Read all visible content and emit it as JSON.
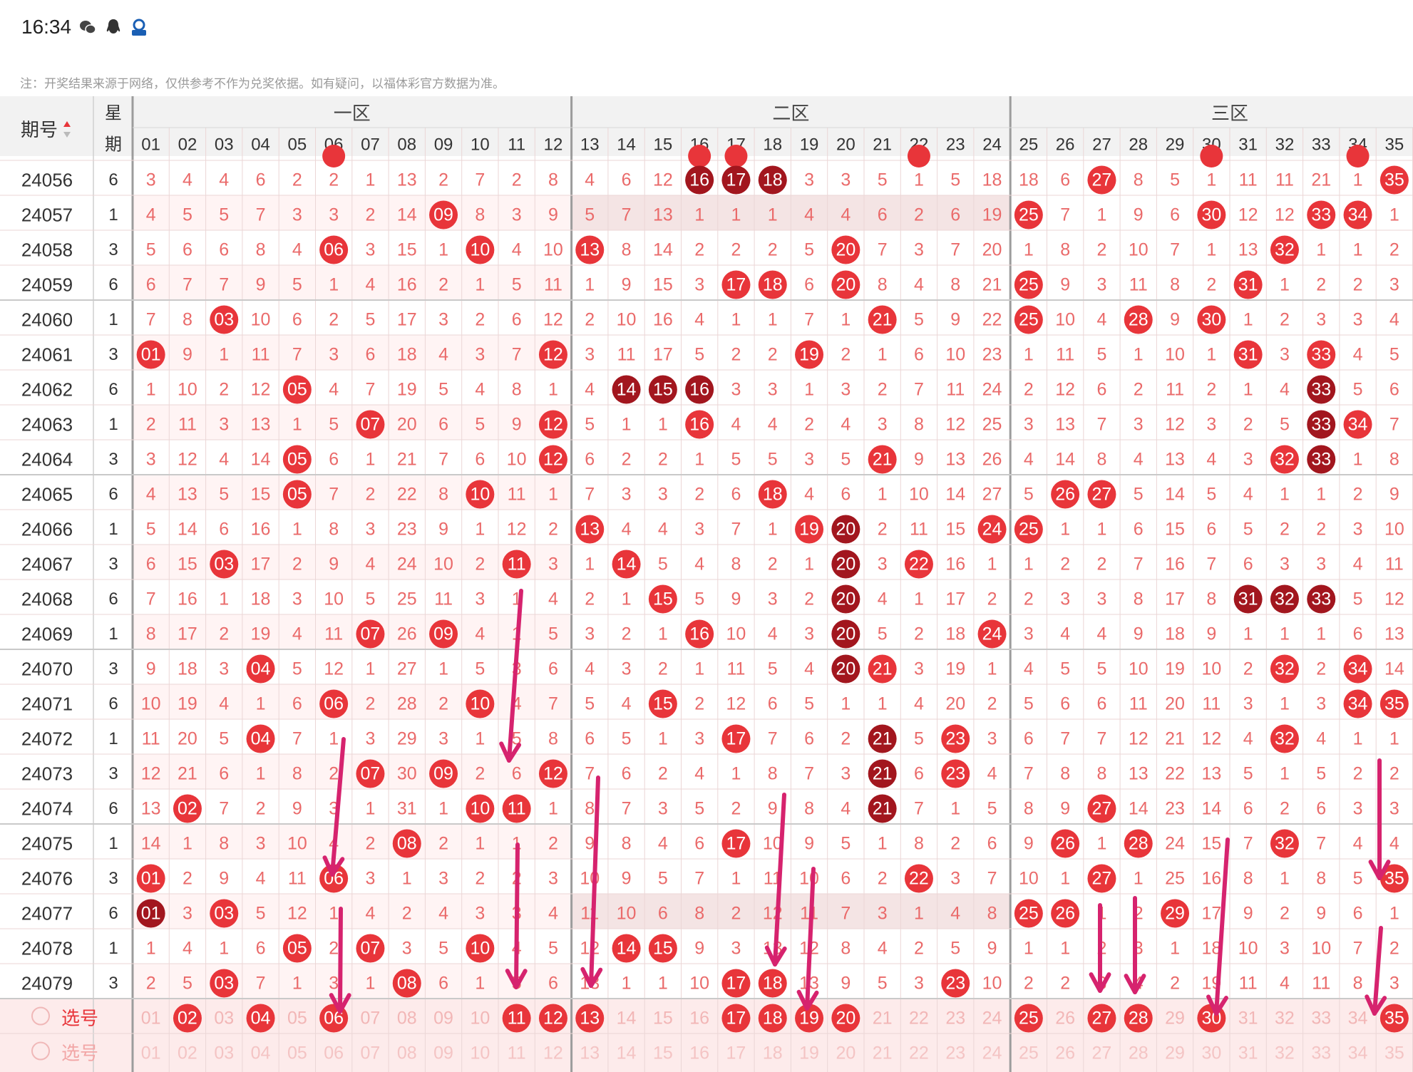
{
  "status_bar": {
    "time": "16:34",
    "icons": [
      "wechat-icon",
      "qq-icon",
      "app-badge-icon"
    ]
  },
  "note": "注：开奖结果来源于网络，仅供参考不作为兑奖依据。如有疑问，以福体彩官方数据为准。",
  "header": {
    "period_label": "期号",
    "weekday_label_top": "星",
    "weekday_label_bottom": "期",
    "zones": [
      "一区",
      "二区",
      "三区"
    ],
    "numbers": [
      "01",
      "02",
      "03",
      "04",
      "05",
      "06",
      "07",
      "08",
      "09",
      "10",
      "11",
      "12",
      "13",
      "14",
      "15",
      "16",
      "17",
      "18",
      "19",
      "20",
      "21",
      "22",
      "23",
      "24",
      "25",
      "26",
      "27",
      "28",
      "29",
      "30",
      "31",
      "32",
      "33",
      "34",
      "35"
    ]
  },
  "rows": [
    {
      "period": "24056",
      "week": "6",
      "cells": [
        "3",
        "4",
        "4",
        "6",
        "2",
        "2",
        "1",
        "13",
        "2",
        "7",
        "2",
        "8",
        "4",
        "6",
        "12",
        "16",
        "17",
        "18",
        "3",
        "3",
        "5",
        "1",
        "5",
        "18",
        "18",
        "6",
        "27",
        "8",
        "5",
        "1",
        "11",
        "11",
        "21",
        "1",
        "35"
      ],
      "hits": [
        16,
        17,
        18,
        27,
        35
      ],
      "repeat": [
        16,
        17,
        18
      ]
    },
    {
      "period": "24057",
      "week": "1",
      "cells": [
        "4",
        "5",
        "5",
        "7",
        "3",
        "3",
        "2",
        "14",
        "09",
        "8",
        "3",
        "9",
        "5",
        "7",
        "13",
        "1",
        "1",
        "1",
        "4",
        "4",
        "6",
        "2",
        "6",
        "19",
        "25",
        "7",
        "1",
        "9",
        "6",
        "30",
        "12",
        "12",
        "33",
        "34",
        "1"
      ],
      "hits": [
        9,
        25,
        30,
        33,
        34
      ],
      "repeat": []
    },
    {
      "period": "24058",
      "week": "3",
      "cells": [
        "5",
        "6",
        "6",
        "8",
        "4",
        "06",
        "3",
        "15",
        "1",
        "10",
        "4",
        "10",
        "13",
        "8",
        "14",
        "2",
        "2",
        "2",
        "5",
        "20",
        "7",
        "3",
        "7",
        "20",
        "1",
        "8",
        "2",
        "10",
        "7",
        "1",
        "13",
        "32",
        "1",
        "1",
        "2"
      ],
      "hits": [
        6,
        10,
        13,
        20,
        32
      ],
      "repeat": []
    },
    {
      "period": "24059",
      "week": "6",
      "cells": [
        "6",
        "7",
        "7",
        "9",
        "5",
        "1",
        "4",
        "16",
        "2",
        "1",
        "5",
        "11",
        "1",
        "9",
        "15",
        "3",
        "17",
        "18",
        "6",
        "20",
        "8",
        "4",
        "8",
        "21",
        "25",
        "9",
        "3",
        "11",
        "8",
        "2",
        "31",
        "1",
        "2",
        "2",
        "3"
      ],
      "hits": [
        17,
        18,
        20,
        25,
        31
      ],
      "repeat": []
    },
    {
      "period": "24060",
      "week": "1",
      "cells": [
        "7",
        "8",
        "03",
        "10",
        "6",
        "2",
        "5",
        "17",
        "3",
        "2",
        "6",
        "12",
        "2",
        "10",
        "16",
        "4",
        "1",
        "1",
        "7",
        "1",
        "21",
        "5",
        "9",
        "22",
        "25",
        "10",
        "4",
        "28",
        "9",
        "30",
        "1",
        "2",
        "3",
        "3",
        "4"
      ],
      "hits": [
        3,
        21,
        25,
        28,
        30
      ],
      "repeat": []
    },
    {
      "period": "24061",
      "week": "3",
      "cells": [
        "01",
        "9",
        "1",
        "11",
        "7",
        "3",
        "6",
        "18",
        "4",
        "3",
        "7",
        "12",
        "3",
        "11",
        "17",
        "5",
        "2",
        "2",
        "19",
        "2",
        "1",
        "6",
        "10",
        "23",
        "1",
        "11",
        "5",
        "1",
        "10",
        "1",
        "31",
        "3",
        "33",
        "4",
        "5"
      ],
      "hits": [
        1,
        12,
        19,
        31,
        33
      ],
      "repeat": []
    },
    {
      "period": "24062",
      "week": "6",
      "cells": [
        "1",
        "10",
        "2",
        "12",
        "05",
        "4",
        "7",
        "19",
        "5",
        "4",
        "8",
        "1",
        "4",
        "14",
        "15",
        "16",
        "3",
        "3",
        "1",
        "3",
        "2",
        "7",
        "11",
        "24",
        "2",
        "12",
        "6",
        "2",
        "11",
        "2",
        "1",
        "4",
        "33",
        "5",
        "6"
      ],
      "hits": [
        5,
        14,
        15,
        16,
        33
      ],
      "repeat": [
        14,
        15,
        16,
        33
      ]
    },
    {
      "period": "24063",
      "week": "1",
      "cells": [
        "2",
        "11",
        "3",
        "13",
        "1",
        "5",
        "07",
        "20",
        "6",
        "5",
        "9",
        "12",
        "5",
        "1",
        "1",
        "16",
        "4",
        "4",
        "2",
        "4",
        "3",
        "8",
        "12",
        "25",
        "3",
        "13",
        "7",
        "3",
        "12",
        "3",
        "2",
        "5",
        "33",
        "34",
        "7"
      ],
      "hits": [
        7,
        12,
        16,
        33,
        34
      ],
      "repeat": [
        33
      ]
    },
    {
      "period": "24064",
      "week": "3",
      "cells": [
        "3",
        "12",
        "4",
        "14",
        "05",
        "6",
        "1",
        "21",
        "7",
        "6",
        "10",
        "12",
        "6",
        "2",
        "2",
        "1",
        "5",
        "5",
        "3",
        "5",
        "21",
        "9",
        "13",
        "26",
        "4",
        "14",
        "8",
        "4",
        "13",
        "4",
        "3",
        "32",
        "33",
        "1",
        "8"
      ],
      "hits": [
        5,
        12,
        21,
        32,
        33
      ],
      "repeat": [
        33
      ]
    },
    {
      "period": "24065",
      "week": "6",
      "cells": [
        "4",
        "13",
        "5",
        "15",
        "05",
        "7",
        "2",
        "22",
        "8",
        "10",
        "11",
        "1",
        "7",
        "3",
        "3",
        "2",
        "6",
        "18",
        "4",
        "6",
        "1",
        "10",
        "14",
        "27",
        "5",
        "26",
        "27",
        "5",
        "14",
        "5",
        "4",
        "1",
        "1",
        "2",
        "9"
      ],
      "hits": [
        5,
        10,
        18,
        26,
        27
      ],
      "repeat": []
    },
    {
      "period": "24066",
      "week": "1",
      "cells": [
        "5",
        "14",
        "6",
        "16",
        "1",
        "8",
        "3",
        "23",
        "9",
        "1",
        "12",
        "2",
        "13",
        "4",
        "4",
        "3",
        "7",
        "1",
        "19",
        "20",
        "2",
        "11",
        "15",
        "24",
        "25",
        "1",
        "1",
        "6",
        "15",
        "6",
        "5",
        "2",
        "2",
        "3",
        "10"
      ],
      "hits": [
        13,
        19,
        20,
        24,
        25
      ],
      "repeat": [
        20
      ]
    },
    {
      "period": "24067",
      "week": "3",
      "cells": [
        "6",
        "15",
        "03",
        "17",
        "2",
        "9",
        "4",
        "24",
        "10",
        "2",
        "11",
        "3",
        "1",
        "14",
        "5",
        "4",
        "8",
        "2",
        "1",
        "20",
        "3",
        "22",
        "16",
        "1",
        "1",
        "2",
        "2",
        "7",
        "16",
        "7",
        "6",
        "3",
        "3",
        "4",
        "11"
      ],
      "hits": [
        3,
        11,
        14,
        20,
        22
      ],
      "repeat": [
        20
      ]
    },
    {
      "period": "24068",
      "week": "6",
      "cells": [
        "7",
        "16",
        "1",
        "18",
        "3",
        "10",
        "5",
        "25",
        "11",
        "3",
        "1",
        "4",
        "2",
        "1",
        "15",
        "5",
        "9",
        "3",
        "2",
        "20",
        "4",
        "1",
        "17",
        "2",
        "2",
        "3",
        "3",
        "8",
        "17",
        "8",
        "31",
        "32",
        "33",
        "5",
        "12"
      ],
      "hits": [
        15,
        20,
        31,
        32,
        33
      ],
      "repeat": [
        20,
        31,
        32,
        33
      ]
    },
    {
      "period": "24069",
      "week": "1",
      "cells": [
        "8",
        "17",
        "2",
        "19",
        "4",
        "11",
        "07",
        "26",
        "09",
        "4",
        "1",
        "5",
        "3",
        "2",
        "1",
        "16",
        "10",
        "4",
        "3",
        "20",
        "5",
        "2",
        "18",
        "24",
        "3",
        "4",
        "4",
        "9",
        "18",
        "9",
        "1",
        "1",
        "1",
        "6",
        "13"
      ],
      "hits": [
        7,
        9,
        16,
        20,
        24
      ],
      "repeat": [
        20
      ]
    },
    {
      "period": "24070",
      "week": "3",
      "cells": [
        "9",
        "18",
        "3",
        "04",
        "5",
        "12",
        "1",
        "27",
        "1",
        "5",
        "3",
        "6",
        "4",
        "3",
        "2",
        "1",
        "11",
        "5",
        "4",
        "20",
        "21",
        "3",
        "19",
        "1",
        "4",
        "5",
        "5",
        "10",
        "19",
        "10",
        "2",
        "32",
        "2",
        "34",
        "14"
      ],
      "hits": [
        4,
        20,
        21,
        32,
        34
      ],
      "repeat": [
        20
      ]
    },
    {
      "period": "24071",
      "week": "6",
      "cells": [
        "10",
        "19",
        "4",
        "1",
        "6",
        "06",
        "2",
        "28",
        "2",
        "10",
        "4",
        "7",
        "5",
        "4",
        "15",
        "2",
        "12",
        "6",
        "5",
        "1",
        "1",
        "4",
        "20",
        "2",
        "5",
        "6",
        "6",
        "11",
        "20",
        "11",
        "3",
        "1",
        "3",
        "34",
        "35"
      ],
      "hits": [
        6,
        10,
        15,
        34,
        35
      ],
      "repeat": []
    },
    {
      "period": "24072",
      "week": "1",
      "cells": [
        "11",
        "20",
        "5",
        "04",
        "7",
        "1",
        "3",
        "29",
        "3",
        "1",
        "5",
        "8",
        "6",
        "5",
        "1",
        "3",
        "17",
        "7",
        "6",
        "2",
        "21",
        "5",
        "23",
        "3",
        "6",
        "7",
        "7",
        "12",
        "21",
        "12",
        "4",
        "32",
        "4",
        "1",
        "1"
      ],
      "hits": [
        4,
        17,
        21,
        23,
        32
      ],
      "repeat": [
        21
      ]
    },
    {
      "period": "24073",
      "week": "3",
      "cells": [
        "12",
        "21",
        "6",
        "1",
        "8",
        "2",
        "07",
        "30",
        "09",
        "2",
        "6",
        "12",
        "7",
        "6",
        "2",
        "4",
        "1",
        "8",
        "7",
        "3",
        "21",
        "6",
        "23",
        "4",
        "7",
        "8",
        "8",
        "13",
        "22",
        "13",
        "5",
        "1",
        "5",
        "2",
        "2"
      ],
      "hits": [
        7,
        9,
        12,
        21,
        23
      ],
      "repeat": [
        21
      ]
    },
    {
      "period": "24074",
      "week": "6",
      "cells": [
        "13",
        "02",
        "7",
        "2",
        "9",
        "3",
        "1",
        "31",
        "1",
        "10",
        "11",
        "1",
        "8",
        "7",
        "3",
        "5",
        "2",
        "9",
        "8",
        "4",
        "21",
        "7",
        "1",
        "5",
        "8",
        "9",
        "27",
        "14",
        "23",
        "14",
        "6",
        "2",
        "6",
        "3",
        "3"
      ],
      "hits": [
        2,
        10,
        11,
        21,
        27
      ],
      "repeat": [
        21
      ]
    },
    {
      "period": "24075",
      "week": "1",
      "cells": [
        "14",
        "1",
        "8",
        "3",
        "10",
        "4",
        "2",
        "08",
        "2",
        "1",
        "1",
        "2",
        "9",
        "8",
        "4",
        "6",
        "17",
        "10",
        "9",
        "5",
        "1",
        "8",
        "2",
        "6",
        "9",
        "26",
        "1",
        "28",
        "24",
        "15",
        "7",
        "32",
        "7",
        "4",
        "4"
      ],
      "hits": [
        8,
        17,
        26,
        28,
        32
      ],
      "repeat": []
    },
    {
      "period": "24076",
      "week": "3",
      "cells": [
        "01",
        "2",
        "9",
        "4",
        "11",
        "06",
        "3",
        "1",
        "3",
        "2",
        "2",
        "3",
        "10",
        "9",
        "5",
        "7",
        "1",
        "11",
        "10",
        "6",
        "2",
        "22",
        "3",
        "7",
        "10",
        "1",
        "27",
        "1",
        "25",
        "16",
        "8",
        "1",
        "8",
        "5",
        "35"
      ],
      "hits": [
        1,
        6,
        22,
        27,
        35
      ],
      "repeat": []
    },
    {
      "period": "24077",
      "week": "6",
      "cells": [
        "01",
        "3",
        "03",
        "5",
        "12",
        "1",
        "4",
        "2",
        "4",
        "3",
        "3",
        "4",
        "11",
        "10",
        "6",
        "8",
        "2",
        "12",
        "11",
        "7",
        "3",
        "1",
        "4",
        "8",
        "25",
        "26",
        "1",
        "2",
        "29",
        "17",
        "9",
        "2",
        "9",
        "6",
        "1"
      ],
      "hits": [
        1,
        3,
        25,
        26,
        29
      ],
      "repeat": [
        1
      ]
    },
    {
      "period": "24078",
      "week": "1",
      "cells": [
        "1",
        "4",
        "1",
        "6",
        "05",
        "2",
        "07",
        "3",
        "5",
        "10",
        "4",
        "5",
        "12",
        "14",
        "15",
        "9",
        "3",
        "13",
        "12",
        "8",
        "4",
        "2",
        "5",
        "9",
        "1",
        "1",
        "2",
        "3",
        "1",
        "18",
        "10",
        "3",
        "10",
        "7",
        "2"
      ],
      "hits": [
        5,
        7,
        10,
        14,
        15
      ],
      "repeat": []
    },
    {
      "period": "24079",
      "week": "3",
      "cells": [
        "2",
        "5",
        "03",
        "7",
        "1",
        "3",
        "1",
        "08",
        "6",
        "1",
        "5",
        "6",
        "13",
        "1",
        "1",
        "10",
        "17",
        "18",
        "13",
        "9",
        "5",
        "3",
        "23",
        "10",
        "2",
        "2",
        "3",
        "4",
        "2",
        "19",
        "11",
        "4",
        "11",
        "8",
        "3"
      ],
      "hits": [
        3,
        8,
        17,
        18,
        23
      ],
      "repeat": []
    }
  ],
  "select_row": {
    "label": "选号",
    "selected": [
      2,
      4,
      6,
      11,
      12,
      13,
      17,
      18,
      19,
      20,
      25,
      27,
      28,
      30,
      35
    ]
  },
  "select_row2": {
    "label": "选号"
  },
  "colors": {
    "hit": "#e8353a",
    "repeat": "#a2161e",
    "miss": "#ea6a6a",
    "arrow": "#d6236e",
    "grid": "#ebd6d6",
    "zone_sep": "#9c9c9c",
    "header_bg": "#f2f2f2",
    "band": "#fdebeb",
    "highlight": "#f4e4e4"
  }
}
